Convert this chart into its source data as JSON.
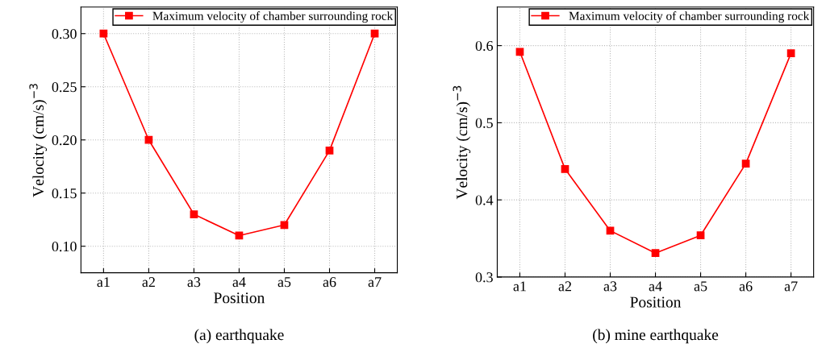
{
  "chart_data": [
    {
      "type": "line",
      "xlabel": "Position",
      "ylabel": "Velocity (cm/s)$^{−3}$",
      "categories": [
        "a1",
        "a2",
        "a3",
        "a4",
        "a5",
        "a6",
        "a7"
      ],
      "series": [
        {
          "name": "Maximum velocity of chamber surrounding rock",
          "color": "#ff0000",
          "values": [
            0.3,
            0.2,
            0.13,
            0.11,
            0.12,
            0.19,
            0.3
          ]
        }
      ],
      "ylim": [
        0.075,
        0.325
      ],
      "yticks": [
        {
          "value": 0.1,
          "label": "0.10"
        },
        0.15,
        {
          "value": 0.2,
          "label": "0.20"
        },
        0.25,
        {
          "value": 0.3,
          "label": "0.30"
        }
      ],
      "grid": true,
      "legend": "top right",
      "marker": "square",
      "line_style": "solid",
      "annotations": [
        "(a) earthquake"
      ]
    },
    {
      "type": "line",
      "xlabel": "Position",
      "ylabel": "Velocity (cm/s)$^{−3}$",
      "categories": [
        "a1",
        "a2",
        "a3",
        "a4",
        "a5",
        "a6",
        "a7"
      ],
      "series": [
        {
          "name": "Maximum velocity of chamber surrounding rock",
          "color": "#ff0000",
          "values": [
            0.592,
            0.44,
            0.36,
            0.331,
            0.354,
            0.447,
            0.59
          ]
        }
      ],
      "ylim": [
        0.3,
        0.65
      ],
      "yticks": [
        0.3,
        0.4,
        0.5,
        0.6
      ],
      "grid": true,
      "legend": "top right",
      "marker": "square",
      "line_style": "solid",
      "annotations": [
        "(b) mine earthquake"
      ]
    }
  ]
}
